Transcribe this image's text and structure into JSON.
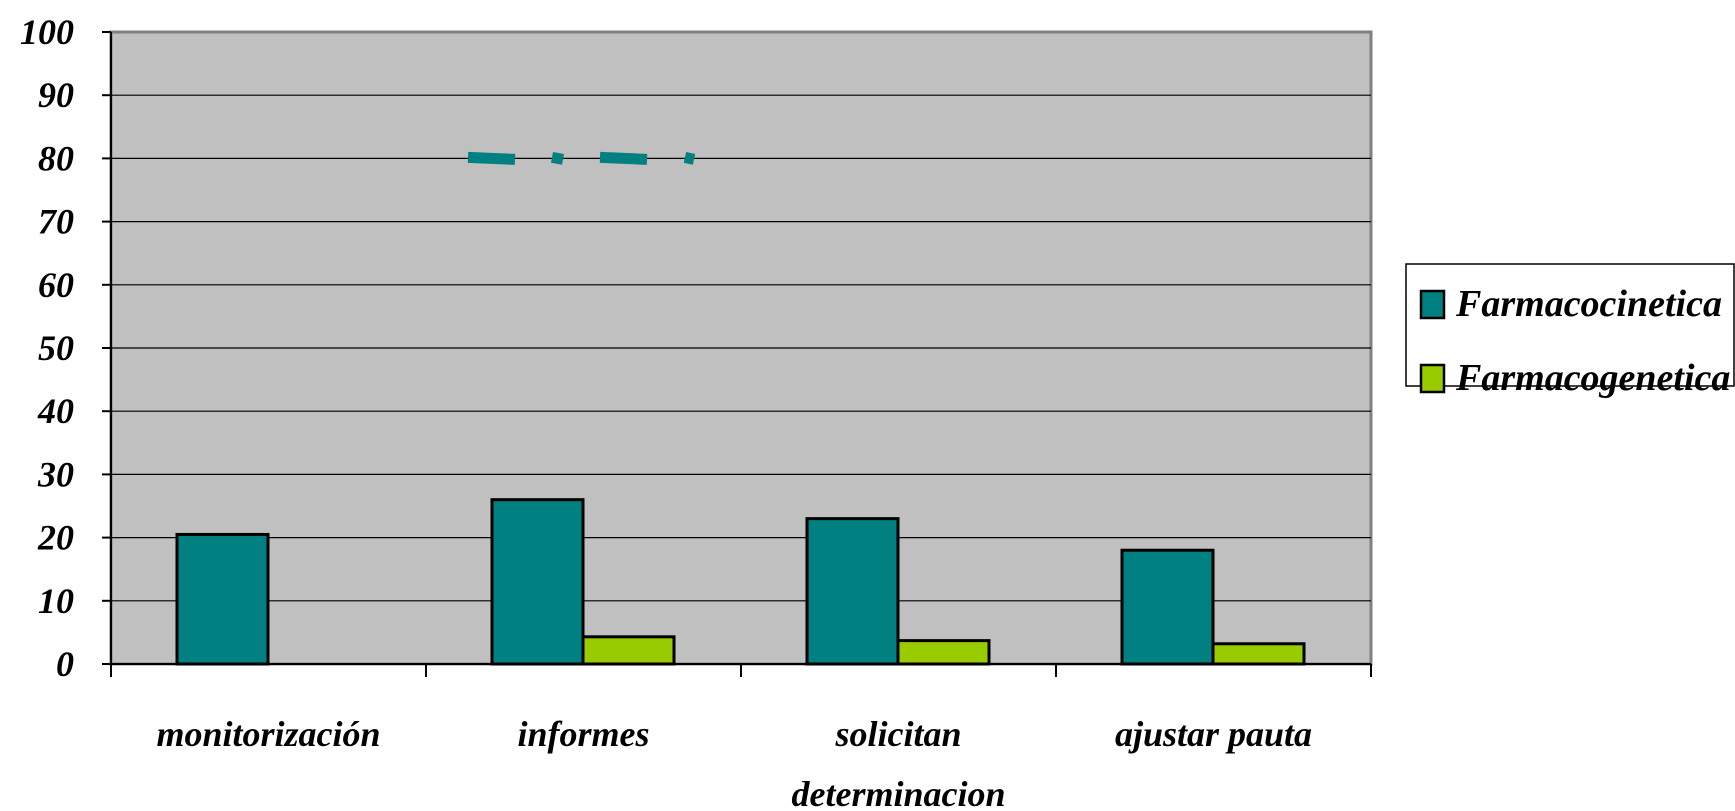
{
  "chart_data": {
    "type": "bar",
    "categories": [
      "monitorización",
      "informes",
      "solicitan determinacion",
      "ajustar pauta"
    ],
    "category_lines": [
      [
        "monitorización"
      ],
      [
        "informes"
      ],
      [
        "solicitan",
        "determinacion"
      ],
      [
        "ajustar pauta"
      ]
    ],
    "series": [
      {
        "name": "Farmacocinetica",
        "values": [
          20.5,
          26,
          23,
          18
        ],
        "color": "#008080"
      },
      {
        "name": "Farmacogenetica",
        "values": [
          0,
          4.3,
          3.7,
          3.2
        ],
        "color": "#99cc00"
      }
    ],
    "ylim": [
      0,
      100
    ],
    "yticks": [
      "0",
      "10",
      "20",
      "30",
      "40",
      "50",
      "60",
      "70",
      "80",
      "90",
      "100"
    ],
    "grid": true,
    "plot_background": "#c0c0c0",
    "legend_position": "right",
    "dashed_annotation": {
      "y": 80,
      "color": "#008080"
    }
  }
}
